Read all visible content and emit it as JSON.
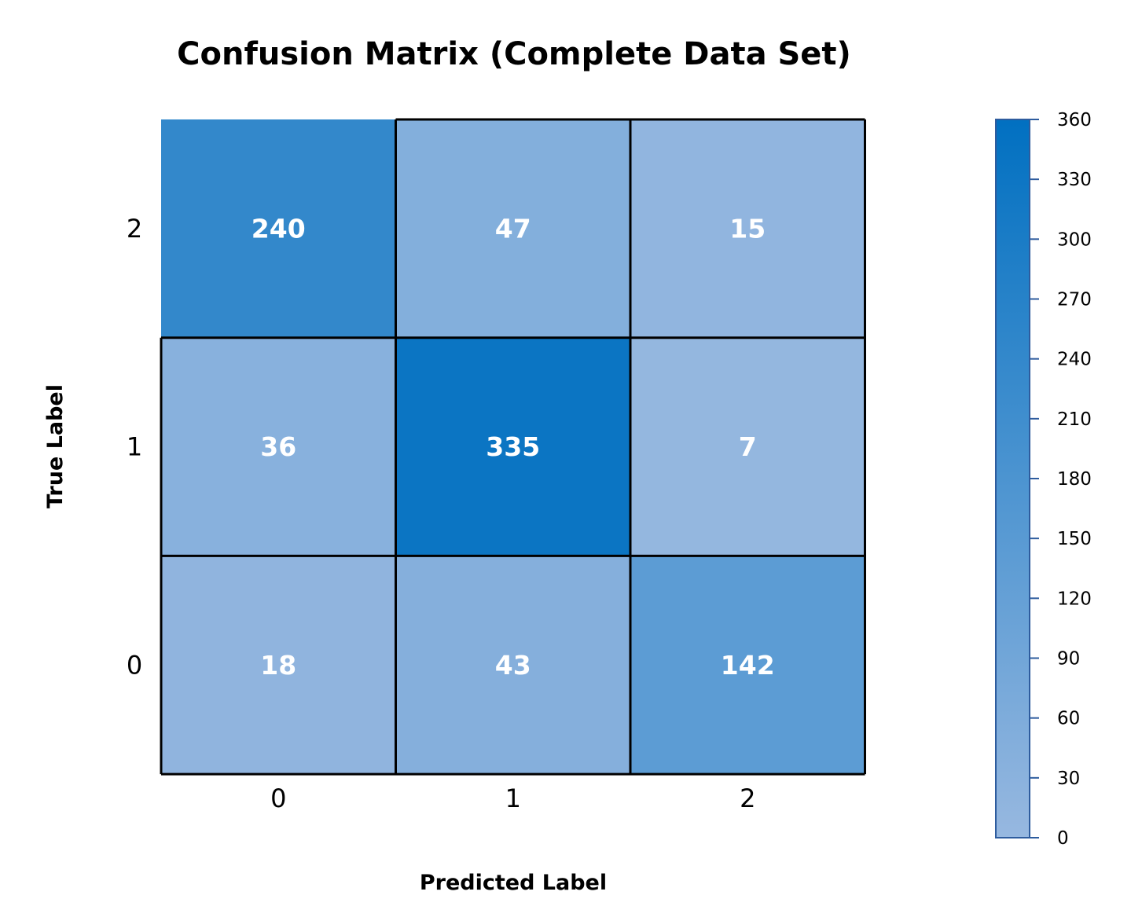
{
  "chart_data": {
    "type": "heatmap",
    "title": "Confusion Matrix (Complete Data Set)",
    "xlabel": "Predicted Label",
    "ylabel": "True Label",
    "x_categories": [
      "0",
      "1",
      "2"
    ],
    "y_categories_top_to_bottom": [
      "2",
      "1",
      "0"
    ],
    "matrix_top_to_bottom": [
      [
        240,
        47,
        15
      ],
      [
        36,
        335,
        7
      ],
      [
        18,
        43,
        142
      ]
    ],
    "colorbar": {
      "min": 0,
      "max": 360,
      "ticks": [
        "0",
        "30",
        "60",
        "90",
        "120",
        "150",
        "180",
        "210",
        "240",
        "270",
        "300",
        "330",
        "360"
      ],
      "color_low": "#97b8e0",
      "color_high": "#0170c1"
    },
    "grid_line_color": "#000000",
    "value_label_color": "#ffffff"
  }
}
